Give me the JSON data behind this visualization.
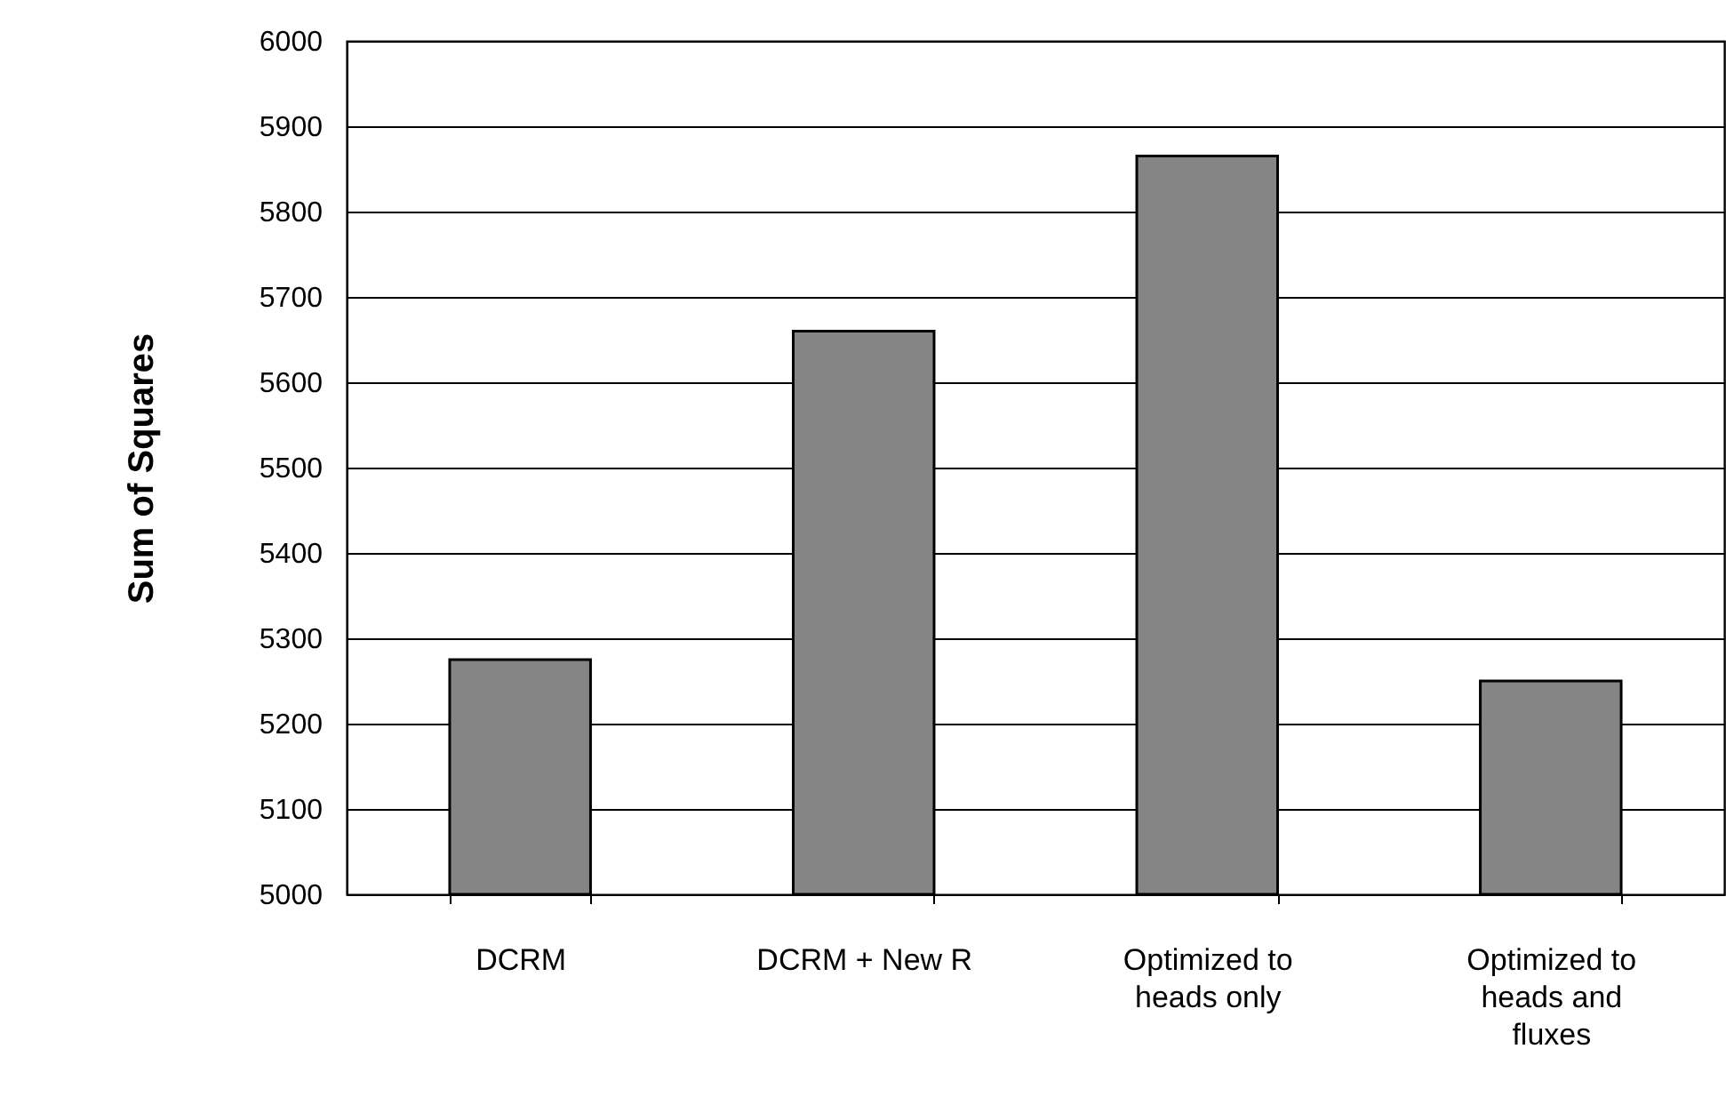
{
  "chart_data": {
    "type": "bar",
    "ylabel": "Sum of Squares",
    "categories": [
      "DCRM",
      "DCRM + New R",
      "Optimized to heads only",
      "Optimized to heads and fluxes"
    ],
    "values": [
      5275,
      5660,
      5865,
      5250
    ],
    "color": "#858585",
    "ylim": [
      5000,
      6000
    ],
    "yticks": [
      5000,
      5100,
      5200,
      5300,
      5400,
      5500,
      5600,
      5700,
      5800,
      5900,
      6000
    ],
    "grid": "y"
  }
}
